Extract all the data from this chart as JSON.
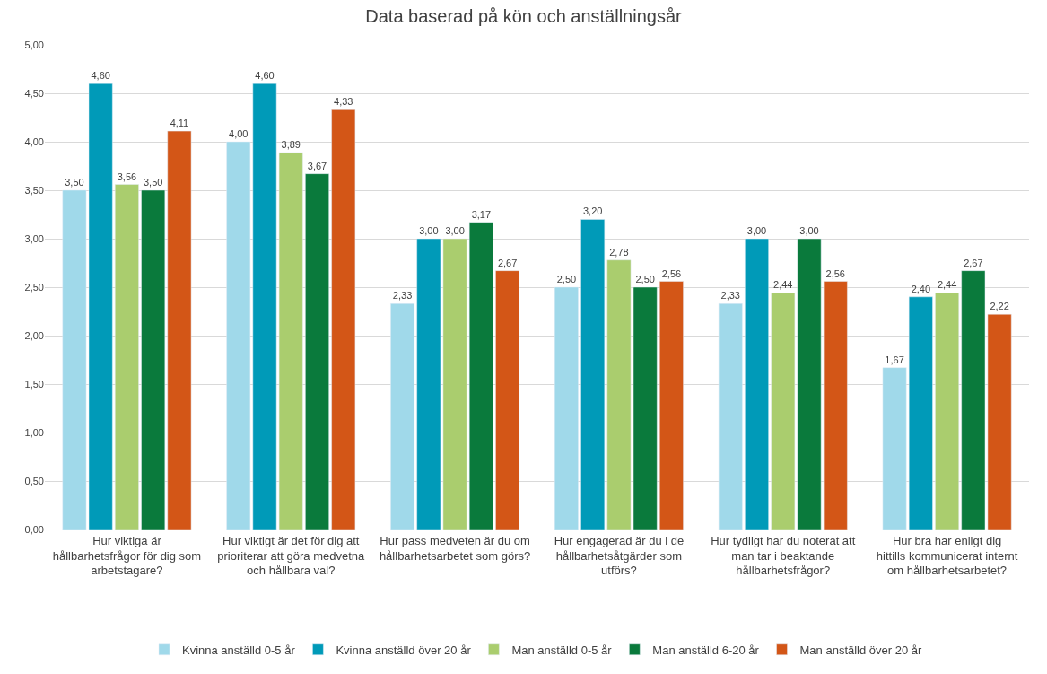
{
  "chart_data": {
    "type": "bar",
    "title": "Data baserad på kön och anställningsår",
    "categories": [
      "Hur viktiga är hållbarhetsfrågor för dig som arbetstagare?",
      "Hur viktigt är det för dig att prioriterar att göra medvetna och hållbara val?",
      "Hur pass medveten är du om hållbarhetsarbetet som görs?",
      "Hur engagerad är du i de hållbarhetsåtgärder som utförs?",
      "Hur tydligt har du noterat att man tar i beaktande hållbarhetsfrågor?",
      "Hur bra har enligt dig hittills kommunicerat internt om hållbarhetsarbetet?"
    ],
    "series": [
      {
        "name": "Kvinna anställd 0-5 år",
        "color": "#a0d9ea",
        "values": [
          3.5,
          4.0,
          2.33,
          2.5,
          2.33,
          1.67
        ],
        "value_labels": [
          "3,50",
          "4,00",
          "2,33",
          "2,50",
          "2,33",
          "1,67"
        ]
      },
      {
        "name": "Kvinna anställd över 20 år",
        "color": "#009ab8",
        "values": [
          4.6,
          4.6,
          3.0,
          3.2,
          3.0,
          2.4
        ],
        "value_labels": [
          "4,60",
          "4,60",
          "3,00",
          "3,20",
          "3,00",
          "2,40"
        ]
      },
      {
        "name": "Man anställd 0-5 år",
        "color": "#aacd6e",
        "values": [
          3.56,
          3.89,
          3.0,
          2.78,
          2.44,
          2.44
        ],
        "value_labels": [
          "3,56",
          "3,89",
          "3,00",
          "2,78",
          "2,44",
          "2,44"
        ]
      },
      {
        "name": "Man anställd 6-20 år",
        "color": "#0a7a3c",
        "values": [
          3.5,
          3.67,
          3.17,
          2.5,
          3.0,
          2.67
        ],
        "value_labels": [
          "3,50",
          "3,67",
          "3,17",
          "2,50",
          "3,00",
          "2,67"
        ]
      },
      {
        "name": "Man anställd över 20 år",
        "color": "#d35617",
        "values": [
          4.11,
          4.33,
          2.67,
          2.56,
          2.56,
          2.22
        ],
        "value_labels": [
          "4,11",
          "4,33",
          "2,67",
          "2,56",
          "2,56",
          "2,22"
        ]
      }
    ],
    "ylim": [
      0,
      5
    ],
    "yticks": [
      {
        "value": 0,
        "label": "0,00"
      },
      {
        "value": 0.5,
        "label": "0,50"
      },
      {
        "value": 1,
        "label": "1,00"
      },
      {
        "value": 1.5,
        "label": "1,50"
      },
      {
        "value": 2,
        "label": "2,00"
      },
      {
        "value": 2.5,
        "label": "2,50"
      },
      {
        "value": 3,
        "label": "3,00"
      },
      {
        "value": 3.5,
        "label": "3,50"
      },
      {
        "value": 4,
        "label": "4,00"
      },
      {
        "value": 4.5,
        "label": "4,50"
      },
      {
        "value": 5,
        "label": "5,00"
      }
    ],
    "grid": "y",
    "legend": "bottom"
  }
}
